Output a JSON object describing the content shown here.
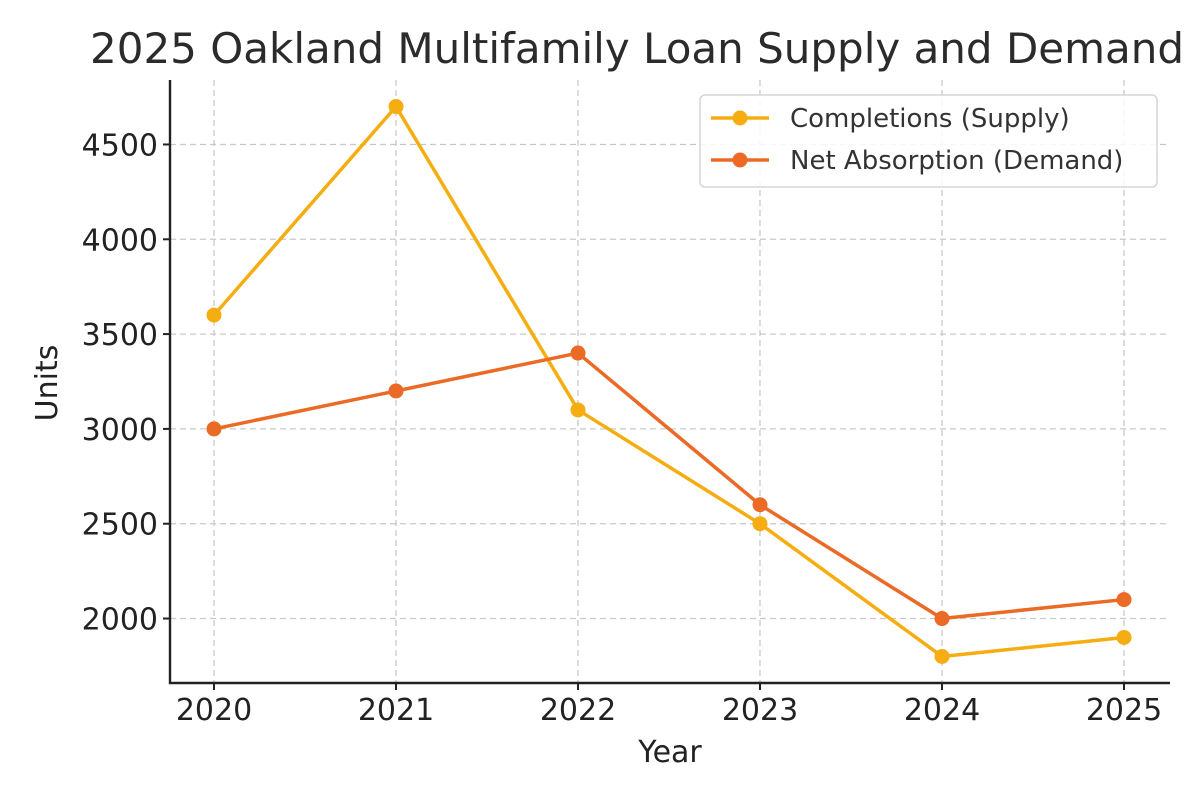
{
  "chart_data": {
    "type": "line",
    "title": "2025 Oakland Multifamily Loan Supply and Demand",
    "xlabel": "Year",
    "ylabel": "Units",
    "x": [
      "2020",
      "2021",
      "2022",
      "2023",
      "2024",
      "2025"
    ],
    "yticks": [
      "2000",
      "2500",
      "3000",
      "3500",
      "4000",
      "4500"
    ],
    "ytick_values": [
      2000,
      2500,
      3000,
      3500,
      4000,
      4500
    ],
    "ylim": [
      1660,
      4840
    ],
    "grid": true,
    "legend_position": "top-right",
    "series": [
      {
        "name": "Completions (Supply)",
        "color": "#F5AD12",
        "marker": "circle",
        "values": [
          3600,
          4700,
          3100,
          2500,
          1800,
          1900
        ]
      },
      {
        "name": "Net Absorption (Demand)",
        "color": "#EA6A26",
        "marker": "circle",
        "values": [
          3000,
          3200,
          3400,
          2600,
          2000,
          2100
        ]
      }
    ]
  }
}
